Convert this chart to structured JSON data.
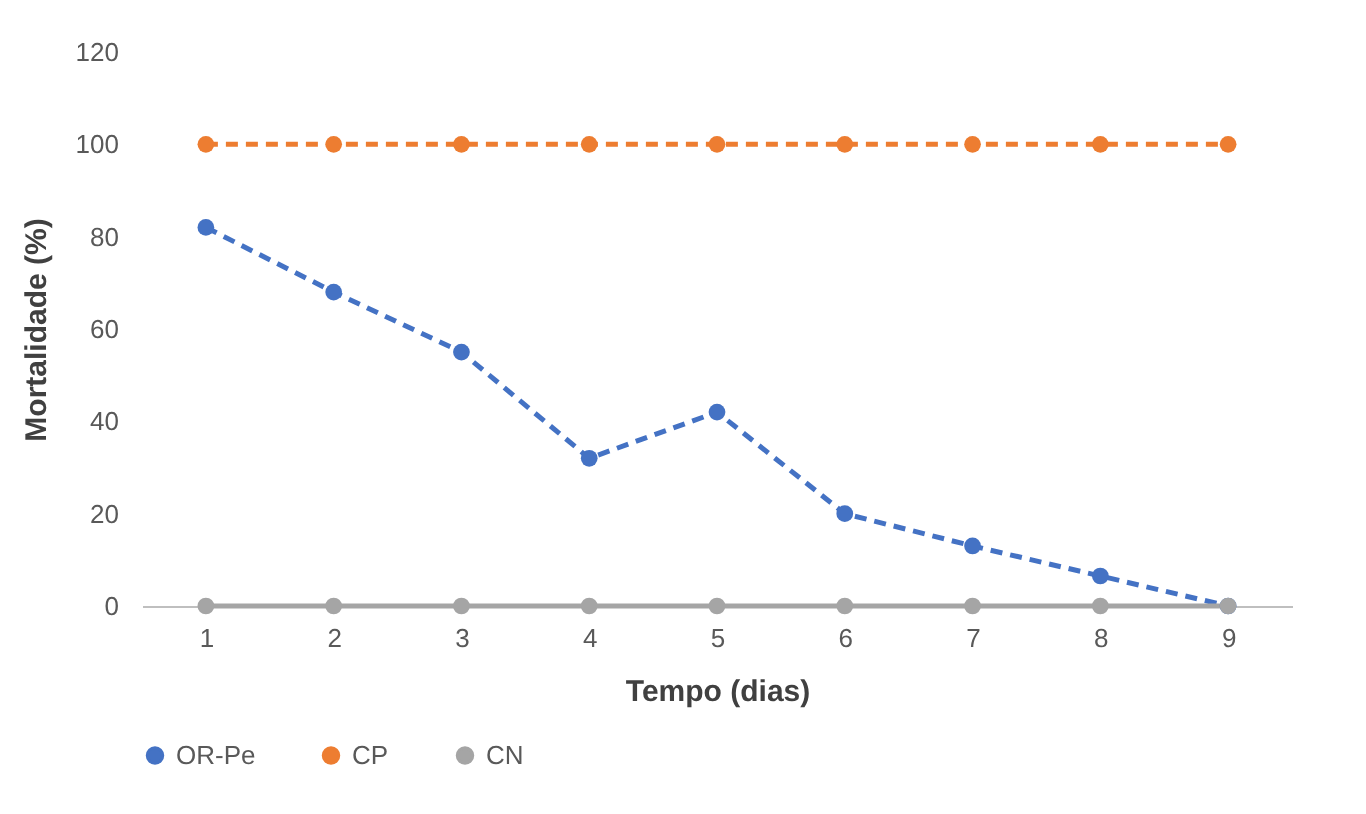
{
  "chart_data": {
    "type": "line",
    "xlabel": "Tempo (dias)",
    "ylabel": "Mortalidade (%)",
    "categories": [
      "1",
      "2",
      "3",
      "4",
      "5",
      "6",
      "7",
      "8",
      "9"
    ],
    "series": [
      {
        "name": "OR-Pe",
        "color": "#4472c4",
        "line_style": "dashed",
        "values": [
          82,
          68,
          55,
          32,
          42,
          20,
          13,
          6.5,
          0
        ]
      },
      {
        "name": "CP",
        "color": "#ed7d31",
        "line_style": "dashed",
        "values": [
          100,
          100,
          100,
          100,
          100,
          100,
          100,
          100,
          100
        ]
      },
      {
        "name": "CN",
        "color": "#a5a5a5",
        "line_style": "solid",
        "values": [
          0,
          0,
          0,
          0,
          0,
          0,
          0,
          0,
          0
        ]
      }
    ],
    "ylim": [
      0,
      120
    ],
    "yticks": [
      0,
      20,
      40,
      60,
      80,
      100,
      120
    ],
    "grid": false,
    "legend": "bottom",
    "marker": "circle"
  }
}
